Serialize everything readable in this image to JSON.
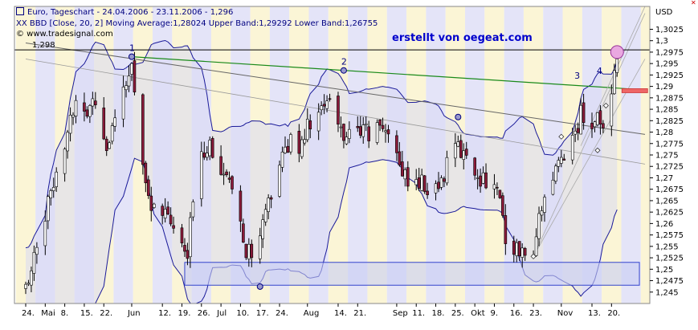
{
  "header": {
    "line1": "Euro, Tageschart - 24.04.2006 - 23.11.2006 - 1,296",
    "line2": "XX BBD [Close, 20, 2] Moving Average:1,28024 Upper Band:1,29292 Lower Band:1,26755",
    "line3": "© www.tradesignal.com"
  },
  "credit": "erstellt von oegeat.com",
  "currency": "USD",
  "chart_data": {
    "type": "candlestick",
    "y_axis": {
      "min": 1.2425,
      "max": 1.3075,
      "ticks": [
        "1,3025",
        "1,3",
        "1,2975",
        "1,295",
        "1,2925",
        "1,29",
        "1,2875",
        "1,285",
        "1,2825",
        "1,28",
        "1,2775",
        "1,275",
        "1,2725",
        "1,27",
        "1,2675",
        "1,265",
        "1,2625",
        "1,26",
        "1,2575",
        "1,255",
        "1,2525",
        "1,25",
        "1,2475",
        "1,245"
      ],
      "tick_values": [
        1.3025,
        1.3,
        1.2975,
        1.295,
        1.2925,
        1.29,
        1.2875,
        1.285,
        1.2825,
        1.28,
        1.2775,
        1.275,
        1.2725,
        1.27,
        1.2675,
        1.265,
        1.2625,
        1.26,
        1.2575,
        1.255,
        1.2525,
        1.25,
        1.2475,
        1.245
      ]
    },
    "x_labels": [
      {
        "label": "24.",
        "day": 0
      },
      {
        "label": "Mai",
        "day": 7
      },
      {
        "label": "8.",
        "day": 14
      },
      {
        "label": "15.",
        "day": 21
      },
      {
        "label": "22.",
        "day": 28
      },
      {
        "label": "Jun",
        "day": 38
      },
      {
        "label": "12.",
        "day": 49
      },
      {
        "label": "19.",
        "day": 56
      },
      {
        "label": "26.",
        "day": 63
      },
      {
        "label": "Jul",
        "day": 70
      },
      {
        "label": "10.",
        "day": 77
      },
      {
        "label": "17.",
        "day": 84
      },
      {
        "label": "24.",
        "day": 91
      },
      {
        "label": "Aug",
        "day": 101
      },
      {
        "label": "14.",
        "day": 112
      },
      {
        "label": "21.",
        "day": 119
      },
      {
        "label": "Sep",
        "day": 133
      },
      {
        "label": "11.",
        "day": 140
      },
      {
        "label": "18.",
        "day": 147
      },
      {
        "label": "25.",
        "day": 154
      },
      {
        "label": "Okt",
        "day": 161
      },
      {
        "label": "9.",
        "day": 168
      },
      {
        "label": "16.",
        "day": 175
      },
      {
        "label": "23.",
        "day": 182
      },
      {
        "label": "Nov",
        "day": 192
      },
      {
        "label": "13.",
        "day": 203
      },
      {
        "label": "20.",
        "day": 210
      }
    ],
    "horizontal_level": {
      "value": 1.298,
      "label": "1,298"
    },
    "pivots": [
      {
        "label": "1",
        "day": 38,
        "value": 1.2965
      },
      {
        "label": "2",
        "day": 114,
        "value": 1.2935
      },
      {
        "label": "3",
        "day": 199,
        "value": 1.2905
      },
      {
        "label": "4",
        "day": 207,
        "value": 1.2915
      }
    ],
    "support_box": {
      "day_start": 57,
      "day_end": 220,
      "low": 1.2465,
      "high": 1.2515
    },
    "bollinger_bands": {
      "period": 20,
      "std_dev": 2,
      "moving_average": 1.28024,
      "upper_band": 1.29292,
      "lower_band": 1.26755
    },
    "anchors": [
      {
        "day": 0,
        "value": 1.2455
      },
      {
        "day": 3,
        "value": 1.2545
      },
      {
        "day": 7,
        "value": 1.2615
      },
      {
        "day": 11,
        "value": 1.2725
      },
      {
        "day": 15,
        "value": 1.2805
      },
      {
        "day": 19,
        "value": 1.2885
      },
      {
        "day": 22,
        "value": 1.2845
      },
      {
        "day": 26,
        "value": 1.2885
      },
      {
        "day": 29,
        "value": 1.2765
      },
      {
        "day": 33,
        "value": 1.2825
      },
      {
        "day": 36,
        "value": 1.2905
      },
      {
        "day": 38,
        "value": 1.294
      },
      {
        "day": 40,
        "value": 1.285
      },
      {
        "day": 43,
        "value": 1.269
      },
      {
        "day": 46,
        "value": 1.2625
      },
      {
        "day": 49,
        "value": 1.2615
      },
      {
        "day": 52,
        "value": 1.2605
      },
      {
        "day": 55,
        "value": 1.2545
      },
      {
        "day": 58,
        "value": 1.2525
      },
      {
        "day": 60,
        "value": 1.266
      },
      {
        "day": 63,
        "value": 1.276
      },
      {
        "day": 66,
        "value": 1.278
      },
      {
        "day": 70,
        "value": 1.272
      },
      {
        "day": 74,
        "value": 1.266
      },
      {
        "day": 78,
        "value": 1.256
      },
      {
        "day": 81,
        "value": 1.252
      },
      {
        "day": 84,
        "value": 1.256
      },
      {
        "day": 87,
        "value": 1.2645
      },
      {
        "day": 91,
        "value": 1.2735
      },
      {
        "day": 95,
        "value": 1.278
      },
      {
        "day": 98,
        "value": 1.2775
      },
      {
        "day": 101,
        "value": 1.2815
      },
      {
        "day": 105,
        "value": 1.284
      },
      {
        "day": 109,
        "value": 1.286
      },
      {
        "day": 112,
        "value": 1.2815
      },
      {
        "day": 115,
        "value": 1.279
      },
      {
        "day": 119,
        "value": 1.2815
      },
      {
        "day": 123,
        "value": 1.279
      },
      {
        "day": 127,
        "value": 1.2815
      },
      {
        "day": 131,
        "value": 1.28
      },
      {
        "day": 135,
        "value": 1.271
      },
      {
        "day": 139,
        "value": 1.2685
      },
      {
        "day": 143,
        "value": 1.2685
      },
      {
        "day": 147,
        "value": 1.2675
      },
      {
        "day": 151,
        "value": 1.2725
      },
      {
        "day": 155,
        "value": 1.2765
      },
      {
        "day": 159,
        "value": 1.2745
      },
      {
        "day": 162,
        "value": 1.27
      },
      {
        "day": 166,
        "value": 1.27
      },
      {
        "day": 169,
        "value": 1.268
      },
      {
        "day": 172,
        "value": 1.257
      },
      {
        "day": 175,
        "value": 1.255
      },
      {
        "day": 178,
        "value": 1.254
      },
      {
        "day": 182,
        "value": 1.2545
      },
      {
        "day": 185,
        "value": 1.2635
      },
      {
        "day": 188,
        "value": 1.269
      },
      {
        "day": 191,
        "value": 1.2725
      },
      {
        "day": 194,
        "value": 1.277
      },
      {
        "day": 197,
        "value": 1.2795
      },
      {
        "day": 199,
        "value": 1.284
      },
      {
        "day": 202,
        "value": 1.2815
      },
      {
        "day": 205,
        "value": 1.283
      },
      {
        "day": 208,
        "value": 1.28
      },
      {
        "day": 210,
        "value": 1.2865
      },
      {
        "day": 212,
        "value": 1.296
      }
    ]
  },
  "colors": {
    "up": "#ffffff",
    "down": "#8b1a3a",
    "wick": "#000000",
    "band": "#1a1a99",
    "band_fill": "#d8d8f4",
    "stripe_a": "#fbf5d6",
    "stripe_b": "#e4e4f8",
    "green_line": "#1a8a1a",
    "gray_line": "#666666",
    "support_box": "#c8cdf4",
    "pivot_fill": "#9999cc",
    "target": "#e9a8e0",
    "red_marker": "#ee6666"
  }
}
